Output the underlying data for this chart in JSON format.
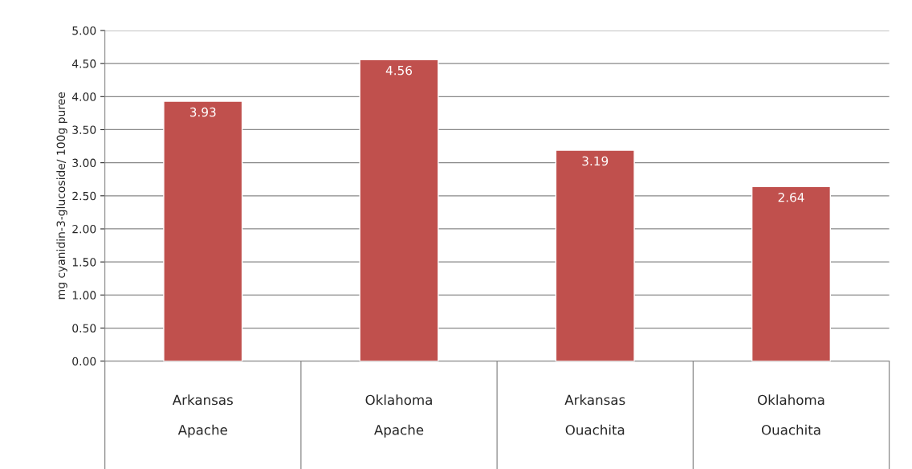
{
  "chart_data": {
    "type": "bar",
    "ylabel": "mg cyanidin-3-glucoside/ 100g puree",
    "categories": [
      "Arkansas\n\nApache",
      "Oklahoma\n\nApache",
      "Arkansas\n\nOuachita",
      "Oklahoma\n\nOuachita"
    ],
    "values": [
      3.93,
      4.56,
      3.19,
      2.64
    ],
    "color": "#c0504d",
    "data_labels": true,
    "ylim": [
      0,
      5
    ],
    "yticks": [
      {
        "value": 0,
        "label": "0.00"
      },
      {
        "value": 0.5,
        "label": "0.50"
      },
      {
        "value": 1,
        "label": "1.00"
      },
      {
        "value": 1.5,
        "label": "1.50"
      },
      {
        "value": 2,
        "label": "2.00"
      },
      {
        "value": 2.5,
        "label": "2.50"
      },
      {
        "value": 3,
        "label": "3.00"
      },
      {
        "value": 3.5,
        "label": "3.50"
      },
      {
        "value": 4,
        "label": "4.00"
      },
      {
        "value": 4.5,
        "label": "4.50"
      },
      {
        "value": 5,
        "label": "5.00"
      }
    ],
    "grid": "y"
  }
}
